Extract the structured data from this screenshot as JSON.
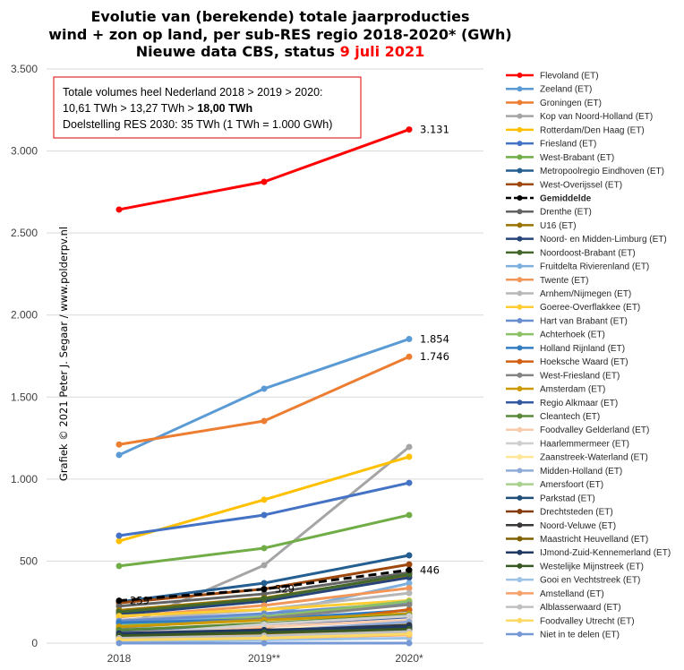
{
  "chart_data": {
    "type": "line",
    "title": [
      "Evolutie van (berekende) totale jaarproducties",
      "wind + zon op land, per sub-RES regio 2018-2020* (GWh)",
      "Nieuwe data CBS, status "
    ],
    "title_date": "9 juli 2021",
    "annotation": {
      "line1": "Totale volumes heel Nederland 2018 > 2019 > 2020:",
      "line2": "10,61 TWh > 13,27 TWh > ",
      "line2_bold": "18,00 TWh",
      "line3": "Doelstelling RES 2030: 35 TWh (1 TWh = 1.000 GWh)"
    },
    "credit": "Grafiek © 2021 Peter J. Segaar / www.polderpv.nl",
    "categories": [
      "2018",
      "2019**",
      "2020*"
    ],
    "ylim": [
      0,
      3500
    ],
    "y_ticks": [
      0,
      500,
      1000,
      1500,
      2000,
      2500,
      3000,
      3500
    ],
    "y_tick_labels": [
      "0",
      "500",
      "1.000",
      "1.500",
      "2.000",
      "2.500",
      "3.000",
      "3.500"
    ],
    "grid": true,
    "legend": "right",
    "series": [
      {
        "name": "Flevoland (ET)",
        "color": "#ff0000",
        "values": [
          2643,
          2812,
          3131
        ],
        "labels": [
          null,
          null,
          "3.131"
        ]
      },
      {
        "name": "Zeeland (ET)",
        "color": "#5b9bd5",
        "values": [
          1147,
          1551,
          1854
        ],
        "labels": [
          null,
          null,
          "1.854"
        ]
      },
      {
        "name": "Groningen (ET)",
        "color": "#ed7d31",
        "values": [
          1211,
          1354,
          1746
        ],
        "labels": [
          null,
          null,
          "1.746"
        ]
      },
      {
        "name": "Kop van Noord-Holland (ET)",
        "color": "#a5a5a5",
        "values": [
          90,
          475,
          1196
        ]
      },
      {
        "name": "Rotterdam/Den Haag (ET)",
        "color": "#ffc000",
        "values": [
          622,
          874,
          1136
        ]
      },
      {
        "name": "Friesland (ET)",
        "color": "#4472c4",
        "values": [
          655,
          781,
          977
        ]
      },
      {
        "name": "West-Brabant (ET)",
        "color": "#70ad47",
        "values": [
          470,
          579,
          781
        ]
      },
      {
        "name": "Metropoolregio Eindhoven (ET)",
        "color": "#255e91",
        "values": [
          251,
          366,
          535
        ]
      },
      {
        "name": "West-Overijssel (ET)",
        "color": "#9e480e",
        "values": [
          245,
          330,
          480
        ]
      },
      {
        "name": "Gemiddelde",
        "color": "#000000",
        "dashed": true,
        "values": [
          259,
          329,
          446
        ],
        "labels": [
          "259",
          "329",
          "446"
        ]
      },
      {
        "name": "Drenthe (ET)",
        "color": "#636363",
        "values": [
          225,
          300,
          430
        ]
      },
      {
        "name": "U16 (ET)",
        "color": "#997300",
        "values": [
          200,
          275,
          415
        ]
      },
      {
        "name": "Noord- en Midden-Limburg (ET)",
        "color": "#264478",
        "values": [
          175,
          255,
          400
        ]
      },
      {
        "name": "Noordoost-Brabant (ET)",
        "color": "#43682b",
        "values": [
          190,
          270,
          420
        ]
      },
      {
        "name": "Fruitdelta Rivierenland (ET)",
        "color": "#7cafdd",
        "values": [
          120,
          170,
          365
        ]
      },
      {
        "name": "Twente (ET)",
        "color": "#f1975a",
        "values": [
          160,
          230,
          335
        ]
      },
      {
        "name": "Arnhem/Nijmegen (ET)",
        "color": "#b7b7b7",
        "values": [
          140,
          205,
          305
        ]
      },
      {
        "name": "Goeree-Overflakkee (ET)",
        "color": "#ffcd33",
        "values": [
          165,
          205,
          260
        ]
      },
      {
        "name": "Hart van Brabant (ET)",
        "color": "#698ed0",
        "values": [
          135,
          180,
          245
        ]
      },
      {
        "name": "Achterhoek (ET)",
        "color": "#8cc168",
        "values": [
          105,
          160,
          255
        ]
      },
      {
        "name": "Holland Rijnland (ET)",
        "color": "#327dc2",
        "values": [
          125,
          145,
          200
        ]
      },
      {
        "name": "Hoeksche Waard (ET)",
        "color": "#d26012",
        "values": [
          65,
          95,
          205
        ]
      },
      {
        "name": "West-Friesland (ET)",
        "color": "#848484",
        "values": [
          95,
          150,
          235
        ]
      },
      {
        "name": "Amsterdam (ET)",
        "color": "#cc9a00",
        "values": [
          100,
          140,
          180
        ]
      },
      {
        "name": "Regio Alkmaar (ET)",
        "color": "#335aa1",
        "values": [
          75,
          110,
          160
        ]
      },
      {
        "name": "Cleantech (ET)",
        "color": "#5a8a39",
        "values": [
          80,
          120,
          170
        ]
      },
      {
        "name": "Foodvalley Gelderland (ET)",
        "color": "#f8cbad",
        "values": [
          60,
          100,
          140
        ]
      },
      {
        "name": "Haarlemmermeer (ET)",
        "color": "#cfcfcf",
        "values": [
          50,
          115,
          165
        ]
      },
      {
        "name": "Zaanstreek-Waterland (ET)",
        "color": "#ffe699",
        "values": [
          40,
          80,
          120
        ]
      },
      {
        "name": "Midden-Holland (ET)",
        "color": "#8fabd9",
        "values": [
          50,
          70,
          130
        ]
      },
      {
        "name": "Amersfoort (ET)",
        "color": "#a9d18e",
        "values": [
          30,
          50,
          90
        ]
      },
      {
        "name": "Parkstad (ET)",
        "color": "#1f4e79",
        "values": [
          45,
          60,
          95
        ]
      },
      {
        "name": "Drechtsteden (ET)",
        "color": "#843c0c",
        "values": [
          35,
          55,
          85
        ]
      },
      {
        "name": "Noord-Veluwe (ET)",
        "color": "#3b3838",
        "values": [
          55,
          75,
          110
        ]
      },
      {
        "name": "Maastricht Heuvelland (ET)",
        "color": "#7f6000",
        "values": [
          40,
          60,
          80
        ]
      },
      {
        "name": "IJmond-Zuid-Kennemerland (ET)",
        "color": "#203864",
        "values": [
          60,
          80,
          100
        ]
      },
      {
        "name": "Westelijke Mijnstreek (ET)",
        "color": "#385723",
        "values": [
          45,
          65,
          85
        ]
      },
      {
        "name": "Gooi en Vechtstreek (ET)",
        "color": "#9dc3e6",
        "values": [
          10,
          20,
          30
        ]
      },
      {
        "name": "Amstelland (ET)",
        "color": "#f4a16a",
        "values": [
          20,
          30,
          50
        ]
      },
      {
        "name": "Alblasserwaard (ET)",
        "color": "#c0c0c0",
        "values": [
          30,
          45,
          70
        ]
      },
      {
        "name": "Foodvalley Utrecht (ET)",
        "color": "#ffd966",
        "values": [
          20,
          30,
          55
        ]
      },
      {
        "name": "Niet in te delen (ET)",
        "color": "#7698d4",
        "values": [
          0,
          0,
          0
        ]
      }
    ]
  }
}
